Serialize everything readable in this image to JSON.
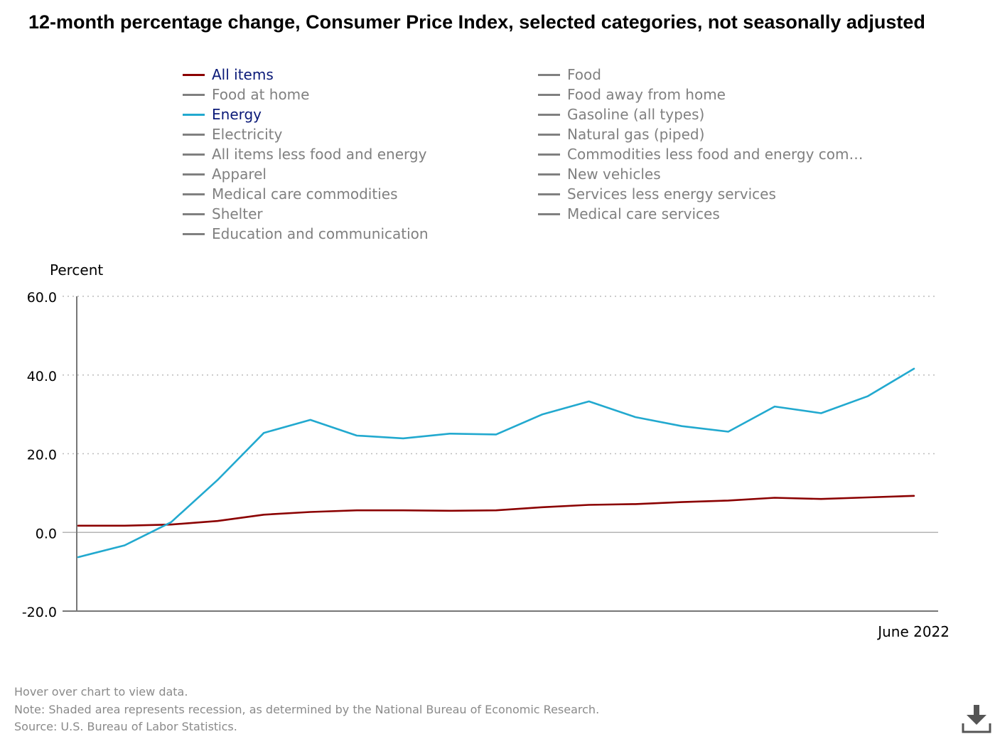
{
  "title": "12-month percentage change, Consumer Price Index, selected categories, not seasonally adjusted",
  "legend": {
    "items": [
      {
        "label": "All items",
        "color": "#8b0000",
        "active": true
      },
      {
        "label": "Food",
        "color": "#808080",
        "active": false
      },
      {
        "label": "Food at home",
        "color": "#808080",
        "active": false
      },
      {
        "label": "Food away from home",
        "color": "#808080",
        "active": false
      },
      {
        "label": "Energy",
        "color": "#22a9cf",
        "active": true
      },
      {
        "label": "Gasoline (all types)",
        "color": "#808080",
        "active": false
      },
      {
        "label": "Electricity",
        "color": "#808080",
        "active": false
      },
      {
        "label": "Natural gas (piped)",
        "color": "#808080",
        "active": false
      },
      {
        "label": "All items less food and energy",
        "color": "#808080",
        "active": false
      },
      {
        "label": "Commodities less food and energy com…",
        "color": "#808080",
        "active": false
      },
      {
        "label": "Apparel",
        "color": "#808080",
        "active": false
      },
      {
        "label": "New vehicles",
        "color": "#808080",
        "active": false
      },
      {
        "label": "Medical care commodities",
        "color": "#808080",
        "active": false
      },
      {
        "label": "Services less energy services",
        "color": "#808080",
        "active": false
      },
      {
        "label": "Shelter",
        "color": "#808080",
        "active": false
      },
      {
        "label": "Medical care services",
        "color": "#808080",
        "active": false
      },
      {
        "label": "Education and communication",
        "color": "#808080",
        "active": false
      }
    ]
  },
  "chart_data": {
    "type": "line",
    "ylabel": "Percent",
    "ylim": [
      -20,
      60
    ],
    "yticks": [
      "60.0",
      "40.0",
      "20.0",
      "0.0",
      "-20.0"
    ],
    "ytick_values": [
      60,
      40,
      20,
      0,
      -20
    ],
    "x_last_label": "June 2022",
    "grid": true,
    "series": [
      {
        "name": "All items",
        "color": "#8b0000",
        "values": [
          1.7,
          1.7,
          2.0,
          2.9,
          4.5,
          5.2,
          5.6,
          5.6,
          5.5,
          5.6,
          6.4,
          7.0,
          7.2,
          7.7,
          8.1,
          8.8,
          8.5,
          8.9,
          9.3
        ]
      },
      {
        "name": "Energy",
        "color": "#22a9cf",
        "values": [
          -6.3,
          -3.3,
          2.6,
          13.3,
          25.3,
          28.6,
          24.6,
          23.9,
          25.1,
          24.9,
          30.0,
          33.3,
          29.3,
          27.0,
          25.6,
          32.0,
          30.3,
          34.6,
          41.6
        ]
      }
    ]
  },
  "footer": {
    "hover": "Hover over chart to view data.",
    "note": "Note: Shaded area represents recession, as determined by the National Bureau of Economic Research.",
    "source": "Source: U.S. Bureau of Labor Statistics."
  },
  "download_icon": "download-icon"
}
